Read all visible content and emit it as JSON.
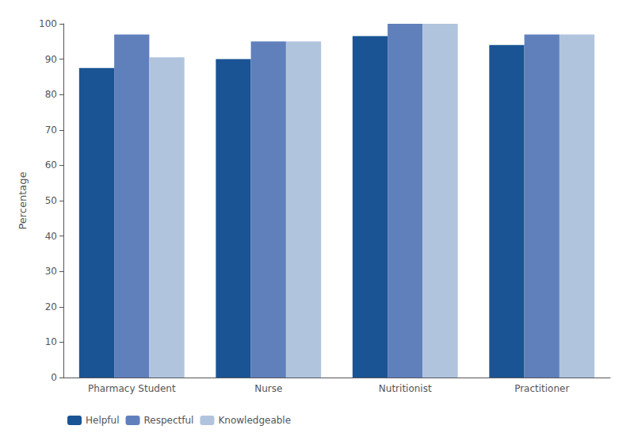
{
  "chart_data": {
    "type": "bar",
    "categories": [
      "Pharmacy Student",
      "Nurse",
      "Nutritionist",
      "Practitioner"
    ],
    "series": [
      {
        "name": "Helpful",
        "color": "#1A5494",
        "values": [
          87.5,
          90.0,
          96.5,
          94.0
        ]
      },
      {
        "name": "Respectful",
        "color": "#6080BC",
        "values": [
          97.0,
          95.0,
          100.0,
          97.0
        ]
      },
      {
        "name": "Knowledgeable",
        "color": "#B0C4DE",
        "values": [
          90.5,
          95.0,
          100.0,
          97.0
        ]
      }
    ],
    "ylabel": "Percentage",
    "ylim": [
      0,
      100
    ],
    "yticks": [
      0,
      10,
      20,
      30,
      40,
      50,
      60,
      70,
      80,
      90,
      100
    ],
    "grid": false,
    "legend": "lower left"
  }
}
